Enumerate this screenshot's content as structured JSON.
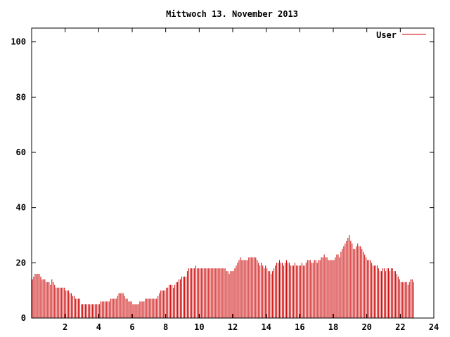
{
  "chart_data": {
    "type": "bar",
    "title": "Mittwoch 13. November 2013",
    "xlabel": "",
    "ylabel": "",
    "xlim": [
      0,
      24
    ],
    "ylim": [
      0,
      105
    ],
    "xticks": [
      2,
      4,
      6,
      8,
      10,
      12,
      14,
      16,
      18,
      20,
      22,
      24
    ],
    "xtick_labels": [
      "2",
      "4",
      "6",
      "8",
      "10",
      "12",
      "14",
      "16",
      "18",
      "20",
      "22",
      "24"
    ],
    "yticks": [
      0,
      20,
      40,
      60,
      80,
      100
    ],
    "ytick_labels": [
      "0",
      "20",
      "40",
      "60",
      "80",
      "100"
    ],
    "grid": false,
    "legend_position": "top-right",
    "series": [
      {
        "name": "User",
        "color": "#cc0000",
        "sample_minutes": 5,
        "values": [
          14,
          15,
          16,
          16,
          16,
          16,
          15,
          14,
          14,
          14,
          13,
          13,
          13,
          12,
          14,
          13,
          12,
          11,
          11,
          11,
          11,
          11,
          11,
          11,
          10,
          10,
          10,
          9,
          9,
          8,
          8,
          7,
          7,
          7,
          7,
          5,
          5,
          5,
          5,
          5,
          5,
          5,
          5,
          5,
          5,
          5,
          5,
          5,
          5,
          6,
          6,
          6,
          6,
          6,
          6,
          6,
          7,
          7,
          7,
          7,
          7,
          8,
          9,
          9,
          9,
          9,
          8,
          7,
          7,
          6,
          6,
          6,
          5,
          5,
          5,
          5,
          5,
          6,
          6,
          6,
          6,
          7,
          7,
          7,
          7,
          7,
          7,
          7,
          7,
          7,
          8,
          9,
          10,
          10,
          10,
          10,
          11,
          11,
          12,
          12,
          12,
          11,
          12,
          13,
          13,
          14,
          14,
          15,
          15,
          15,
          15,
          17,
          18,
          18,
          18,
          18,
          18,
          19,
          18,
          18,
          18,
          18,
          18,
          18,
          18,
          18,
          18,
          18,
          18,
          18,
          18,
          18,
          18,
          18,
          18,
          18,
          18,
          18,
          18,
          17,
          17,
          16,
          17,
          17,
          17,
          18,
          19,
          20,
          21,
          22,
          21,
          21,
          21,
          21,
          21,
          22,
          22,
          22,
          22,
          22,
          22,
          21,
          20,
          19,
          20,
          19,
          18,
          19,
          18,
          17,
          17,
          16,
          17,
          18,
          19,
          20,
          20,
          21,
          20,
          20,
          19,
          20,
          21,
          20,
          20,
          19,
          19,
          19,
          20,
          19,
          19,
          19,
          19,
          20,
          19,
          19,
          20,
          21,
          21,
          21,
          20,
          20,
          21,
          21,
          20,
          21,
          21,
          22,
          22,
          23,
          22,
          22,
          21,
          21,
          21,
          21,
          21,
          22,
          23,
          23,
          22,
          24,
          25,
          26,
          27,
          28,
          29,
          30,
          28,
          27,
          25,
          25,
          26,
          27,
          26,
          26,
          25,
          24,
          23,
          22,
          21,
          21,
          21,
          20,
          19,
          19,
          19,
          19,
          18,
          17,
          17,
          18,
          18,
          17,
          18,
          18,
          17,
          18,
          18,
          17,
          17,
          16,
          15,
          14,
          13,
          13,
          13,
          13,
          13,
          12,
          13,
          14,
          14,
          13
        ]
      }
    ]
  }
}
